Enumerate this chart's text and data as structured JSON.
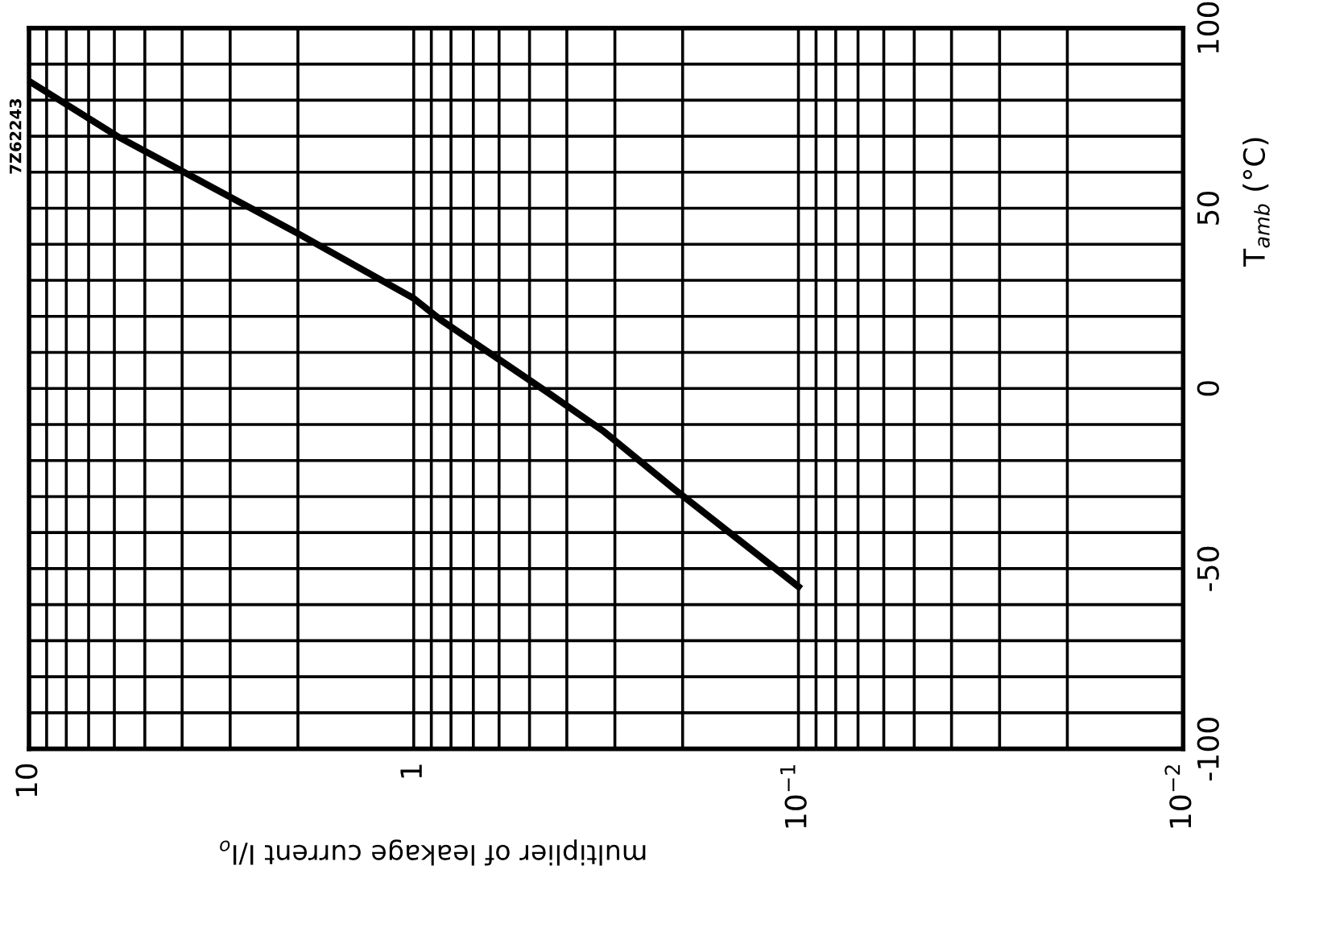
{
  "chart_data": {
    "type": "line",
    "xlabel": "multiplier of leakage current I/I$_{o}$",
    "ylabel": "T$_{amb}$ (°C)",
    "annotations": [
      "7Z62243"
    ],
    "log": "x",
    "x": [
      9.9,
      5.9,
      2.0,
      1.0,
      0.85,
      0.45,
      0.32,
      0.21,
      0.1
    ],
    "series": [
      {
        "color": "#000000",
        "values": [
          85,
          70,
          43,
          25,
          19,
          -1,
          -12,
          -28,
          -55
        ]
      }
    ],
    "xlim": [
      10,
      0.01
    ],
    "xticks": [
      {
        "value": 10,
        "label": "10"
      },
      {
        "value": 9,
        "label": null
      },
      {
        "value": 8,
        "label": null
      },
      {
        "value": 7,
        "label": null
      },
      {
        "value": 6,
        "label": null
      },
      {
        "value": 5,
        "label": null
      },
      {
        "value": 4,
        "label": null
      },
      {
        "value": 3,
        "label": null
      },
      {
        "value": 2,
        "label": null
      },
      {
        "value": 1,
        "label": "1"
      },
      {
        "value": 0.9,
        "label": null
      },
      {
        "value": 0.8,
        "label": null
      },
      {
        "value": 0.7,
        "label": null
      },
      {
        "value": 0.6,
        "label": null
      },
      {
        "value": 0.5,
        "label": null
      },
      {
        "value": 0.4,
        "label": null
      },
      {
        "value": 0.3,
        "label": null
      },
      {
        "value": 0.2,
        "label": null
      },
      {
        "value": 0.1,
        "label": "10$^{−1}$"
      },
      {
        "value": 0.09,
        "label": null
      },
      {
        "value": 0.08,
        "label": null
      },
      {
        "value": 0.07,
        "label": null
      },
      {
        "value": 0.06,
        "label": null
      },
      {
        "value": 0.05,
        "label": null
      },
      {
        "value": 0.04,
        "label": null
      },
      {
        "value": 0.03,
        "label": null
      },
      {
        "value": 0.02,
        "label": null
      },
      {
        "value": 0.01,
        "label": "10$^{−2}$"
      }
    ],
    "ylim": [
      -100,
      100
    ],
    "yticks": [
      -100,
      {
        "value": -90,
        "label": null
      },
      {
        "value": -80,
        "label": null
      },
      {
        "value": -70,
        "label": null
      },
      {
        "value": -60,
        "label": null
      },
      -50,
      {
        "value": -40,
        "label": null
      },
      {
        "value": -30,
        "label": null
      },
      {
        "value": -20,
        "label": null
      },
      {
        "value": -10,
        "label": null
      },
      0,
      {
        "value": 10,
        "label": null
      },
      {
        "value": 20,
        "label": null
      },
      {
        "value": 30,
        "label": null
      },
      {
        "value": 40,
        "label": null
      },
      50,
      {
        "value": 60,
        "label": null
      },
      {
        "value": 70,
        "label": null
      },
      {
        "value": 80,
        "label": null
      },
      {
        "value": 90,
        "label": null
      },
      100
    ],
    "grid": true,
    "line_style": "solid",
    "marker": "none"
  }
}
